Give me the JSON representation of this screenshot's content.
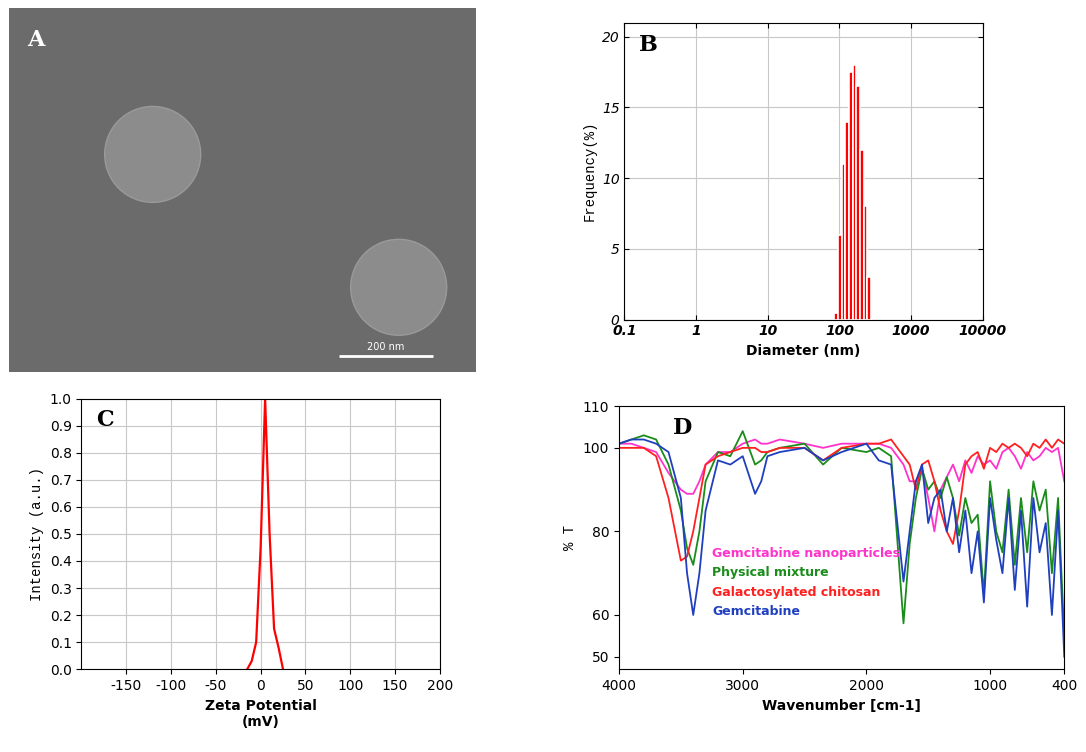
{
  "chart_data": [
    {
      "type": "image",
      "title": "A",
      "annotations": [
        "200 nm"
      ]
    },
    {
      "type": "histogram",
      "title": "B",
      "x_label": "Diameter (nm)",
      "y_label": "Frequency(%)",
      "bins": [
        85,
        96,
        108,
        121,
        136,
        153,
        172,
        193,
        217,
        244,
        274
      ],
      "values": [
        0.5,
        6,
        11,
        14,
        17.5,
        18,
        16.5,
        12,
        8,
        3
      ],
      "color": "#ff0000",
      "log": "x",
      "xlim": [
        0.1,
        10000
      ],
      "xticks": [
        0.1,
        1,
        10,
        100,
        1000,
        10000
      ],
      "ylim": [
        0,
        21
      ],
      "yticks": [
        0,
        5,
        10,
        15,
        20
      ],
      "grid": true
    },
    {
      "type": "line",
      "title": "C",
      "x_label": "Zeta Potential\n(mV)",
      "y_label": "Intensity (a.u.)",
      "x": [
        -15,
        -10,
        -5,
        0,
        5,
        10,
        15,
        20,
        25
      ],
      "values": [
        0,
        0.03,
        0.1,
        0.45,
        1.0,
        0.5,
        0.15,
        0.08,
        0
      ],
      "color": "#ff0000",
      "xlim": [
        -200,
        200
      ],
      "xticks": [
        -150,
        -100,
        -50,
        0,
        50,
        100,
        150,
        200
      ],
      "ylim": [
        0.0,
        1.0
      ],
      "yticks": [
        0.0,
        0.1,
        0.2,
        0.3,
        0.4,
        0.5,
        0.6,
        0.7,
        0.8,
        0.9,
        1.0
      ],
      "grid": true
    },
    {
      "type": "line",
      "title": "D",
      "x_label": "Wavenumber [cm-1]",
      "y_label": "% T",
      "x": [
        4000,
        3900,
        3800,
        3700,
        3600,
        3500,
        3450,
        3400,
        3350,
        3300,
        3200,
        3100,
        3000,
        2900,
        2850,
        2800,
        2700,
        2500,
        2350,
        2200,
        2000,
        1900,
        1800,
        1700,
        1650,
        1600,
        1550,
        1500,
        1450,
        1400,
        1350,
        1300,
        1250,
        1200,
        1150,
        1100,
        1050,
        1000,
        950,
        900,
        850,
        800,
        750,
        700,
        650,
        600,
        550,
        500,
        450,
        400
      ],
      "series": [
        {
          "name": "Gemcitabine nanoparticles",
          "color": "#ff33cc",
          "values": [
            101,
            101,
            100,
            99,
            94,
            90,
            89,
            89,
            92,
            96,
            99,
            99,
            101,
            102,
            101,
            101,
            102,
            101,
            100,
            101,
            101,
            101,
            100,
            96,
            92,
            92,
            95,
            88,
            80,
            90,
            93,
            96,
            92,
            97,
            94,
            98,
            96,
            97,
            95,
            99,
            100,
            98,
            95,
            99,
            97,
            98,
            100,
            99,
            100,
            92
          ]
        },
        {
          "name": "Physical mixture",
          "color": "#1a8c1a",
          "values": [
            101,
            102,
            103,
            102,
            96,
            85,
            76,
            72,
            80,
            92,
            99,
            98,
            104,
            96,
            97,
            99,
            100,
            101,
            96,
            100,
            99,
            100,
            98,
            58,
            77,
            88,
            95,
            90,
            92,
            88,
            93,
            88,
            79,
            88,
            82,
            84,
            65,
            92,
            80,
            75,
            90,
            72,
            88,
            75,
            92,
            85,
            90,
            70,
            88,
            55
          ]
        },
        {
          "name": "Galactosylated chitosan",
          "color": "#ff2020",
          "values": [
            100,
            100,
            100,
            98,
            88,
            73,
            74,
            80,
            88,
            96,
            98,
            99,
            100,
            100,
            99,
            99,
            100,
            100,
            97,
            100,
            101,
            101,
            102,
            98,
            96,
            90,
            96,
            97,
            92,
            85,
            80,
            77,
            85,
            96,
            98,
            99,
            95,
            100,
            99,
            101,
            100,
            101,
            100,
            98,
            101,
            100,
            102,
            100,
            102,
            101
          ]
        },
        {
          "name": "Gemcitabine",
          "color": "#1f3fbf",
          "values": [
            101,
            102,
            102,
            101,
            99,
            88,
            70,
            60,
            70,
            85,
            97,
            96,
            98,
            89,
            92,
            98,
            99,
            100,
            97,
            99,
            101,
            97,
            96,
            68,
            80,
            92,
            96,
            82,
            88,
            90,
            80,
            88,
            75,
            85,
            70,
            80,
            63,
            88,
            78,
            70,
            88,
            66,
            85,
            62,
            88,
            75,
            82,
            60,
            85,
            50
          ]
        }
      ],
      "legend": "center",
      "xlim": [
        4000,
        400
      ],
      "xticks": [
        4000,
        3000,
        2000,
        1000,
        400
      ],
      "ylim": [
        47,
        110
      ],
      "yticks": [
        50,
        60,
        80,
        100,
        110
      ],
      "grid": false
    }
  ]
}
